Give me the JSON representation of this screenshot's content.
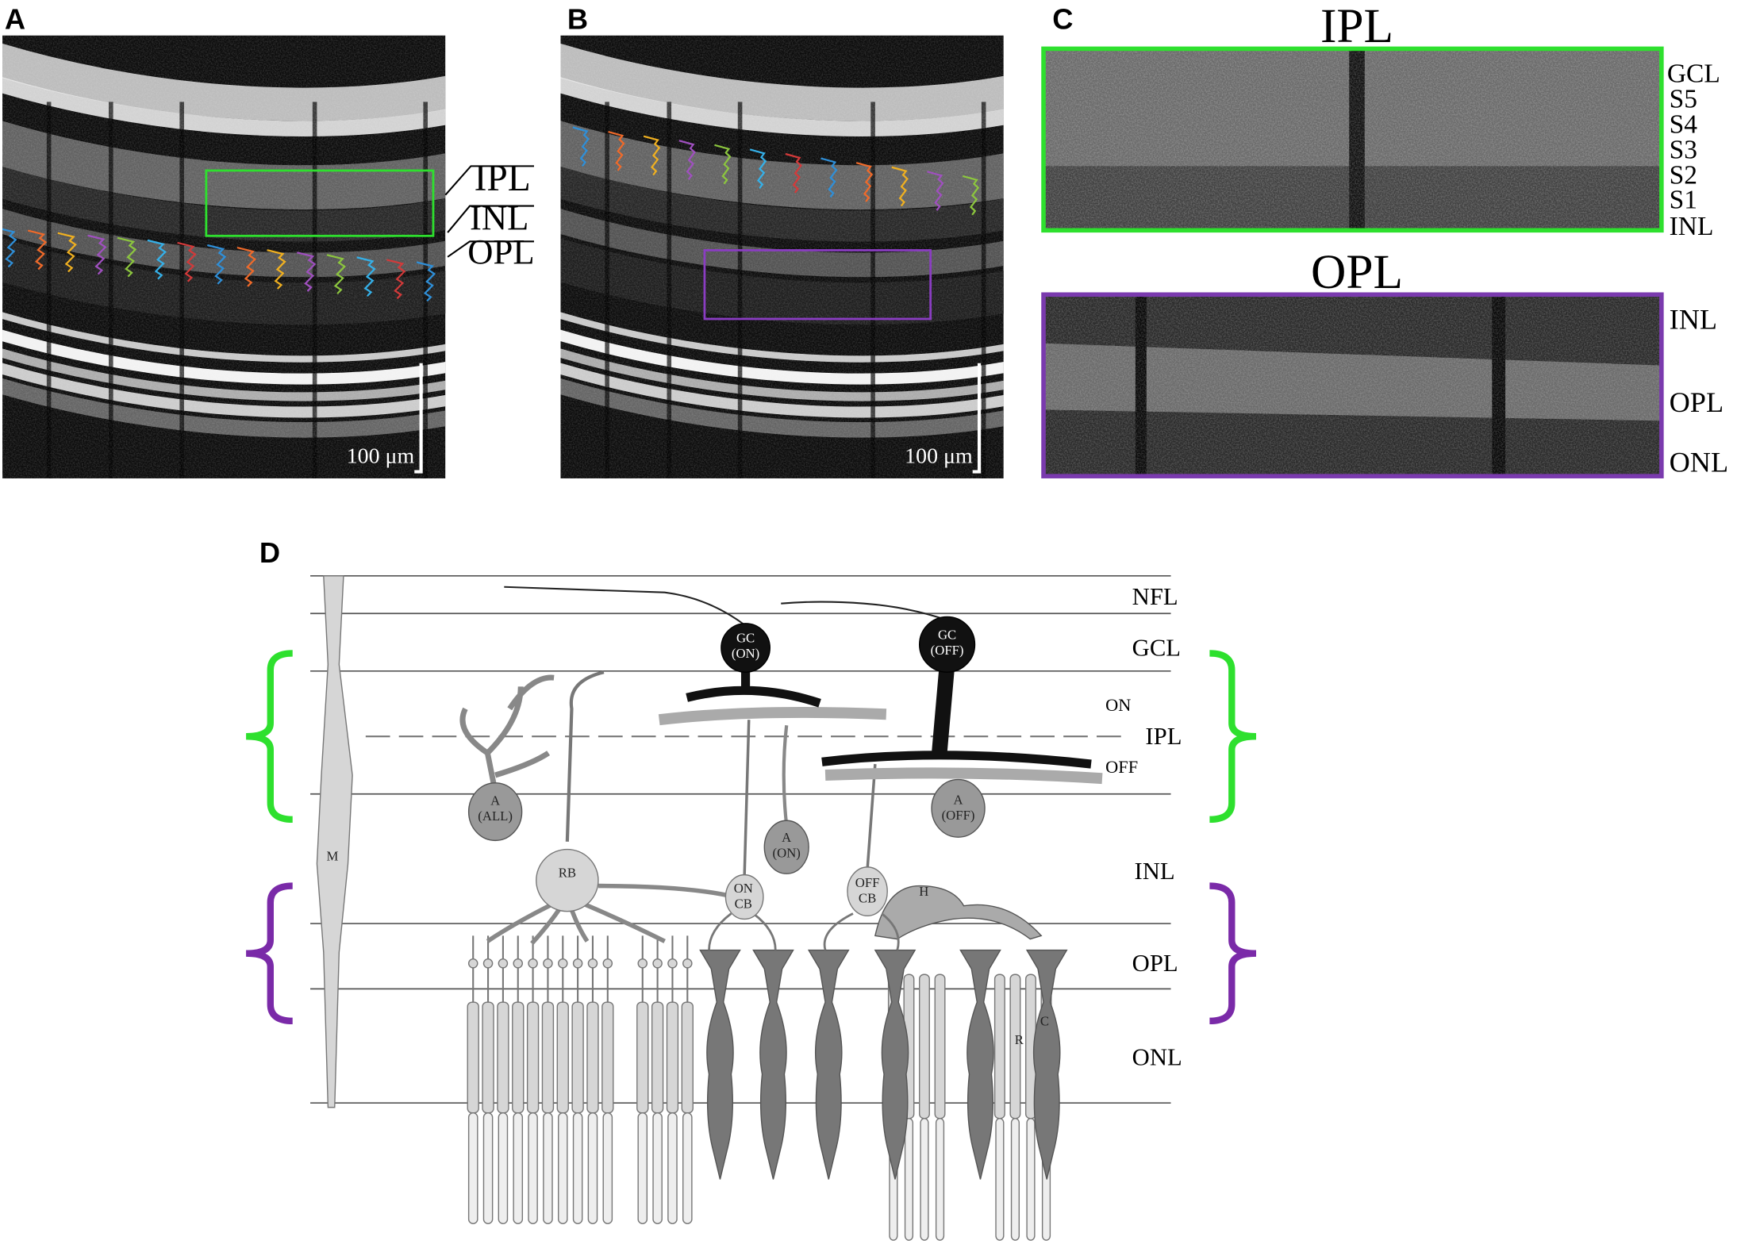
{
  "panels": {
    "a": {
      "label": "A",
      "layers": [
        "IPL",
        "INL",
        "OPL"
      ],
      "scale_bar": "100 μm"
    },
    "b": {
      "label": "B",
      "scale_bar": "100 μm"
    },
    "c": {
      "label": "C",
      "ipl": {
        "title": "IPL",
        "layers": [
          "GCL",
          "S5",
          "S4",
          "S3",
          "S2",
          "S1",
          "INL"
        ]
      },
      "opl": {
        "title": "OPL",
        "layers": [
          "INL",
          "OPL",
          "ONL"
        ]
      }
    },
    "d": {
      "label": "D",
      "layers": [
        "NFL",
        "GCL",
        "IPL",
        "INL",
        "OPL",
        "ONL"
      ],
      "sublayers": [
        "ON",
        "OFF"
      ],
      "cells": {
        "m": [
          "M"
        ],
        "a_all": [
          "A",
          "(ALL)"
        ],
        "rb": [
          "RB"
        ],
        "gc_on": [
          "GC",
          "(ON)"
        ],
        "gc_off": [
          "GC",
          "(OFF)"
        ],
        "a_on": [
          "A",
          "(ON)"
        ],
        "a_off": [
          "A",
          "(OFF)"
        ],
        "on_cb": [
          "ON",
          "CB"
        ],
        "off_cb": [
          "OFF",
          "CB"
        ],
        "h": [
          "H"
        ],
        "r": [
          "R"
        ],
        "c": [
          "C"
        ]
      }
    }
  }
}
